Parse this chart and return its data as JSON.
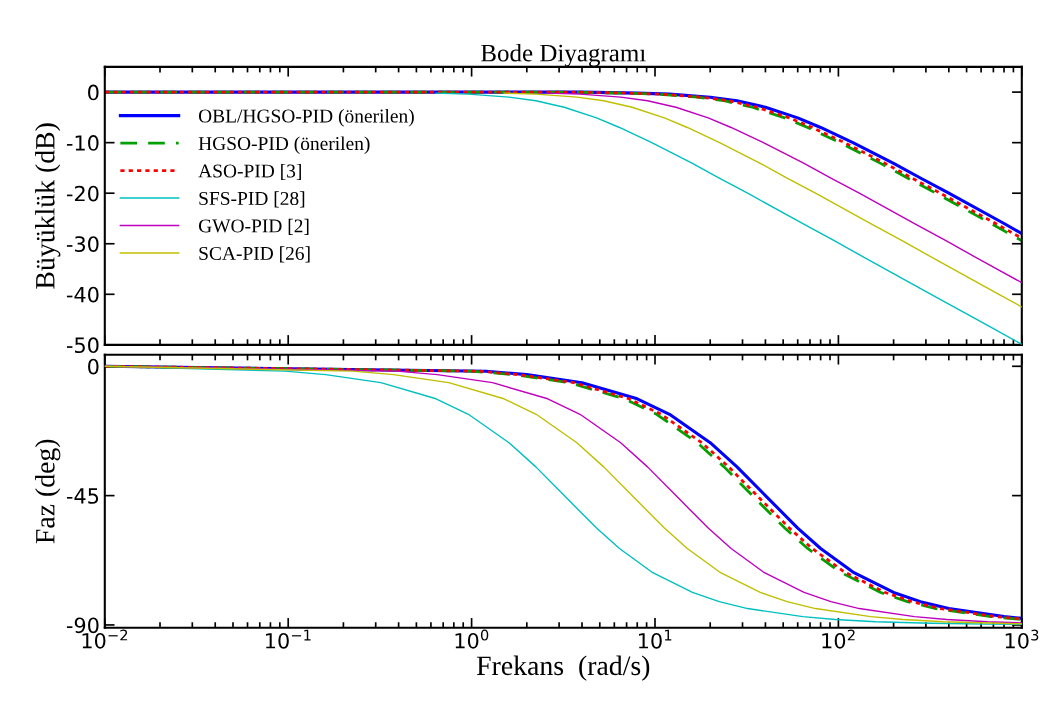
{
  "chart_data": [
    {
      "type": "line",
      "title": "Bode Diyagramı",
      "ylabel": "Büyüklük (dB)",
      "log": "x",
      "xlim": [
        0.01,
        1000
      ],
      "ylim": [
        -50,
        5
      ],
      "yticks": [
        -50,
        -40,
        -30,
        -20,
        -10,
        0
      ],
      "tick_labels": "y",
      "legend": "left",
      "series": [
        {
          "name": "OBL/HGSO-PID (önerilen)",
          "color": "#0000ff",
          "line_style": "solid",
          "x": [
            0.01,
            1.2,
            2,
            4,
            8,
            12,
            20,
            28,
            40,
            60,
            80,
            120,
            200,
            280,
            400,
            800,
            1000
          ],
          "values": [
            0,
            0,
            0,
            0,
            -0.2,
            -0.4,
            -1,
            -1.7,
            -3.0,
            -5.1,
            -7.0,
            -10.0,
            -14.1,
            -17.0,
            -20.0,
            -26.0,
            -28.0
          ]
        },
        {
          "name": "HGSO-PID (önerilen)",
          "color": "#00a000",
          "line_style": "dashed",
          "x": [
            0.01,
            1.0,
            1.7,
            3.4,
            6.8,
            10.2,
            17,
            23.8,
            34,
            51,
            68,
            102,
            170,
            238,
            340,
            680,
            1000
          ],
          "values": [
            0,
            0,
            0,
            0,
            -0.2,
            -0.4,
            -1,
            -1.7,
            -3.0,
            -5.1,
            -7.0,
            -10.0,
            -14.1,
            -17.0,
            -20.0,
            -26.0,
            -29.4
          ]
        },
        {
          "name": "ASO-PID [3]",
          "color": "#ff0000",
          "line_style": "dotted",
          "x": [
            0.01,
            1.1,
            1.8,
            3.6,
            7.2,
            10.8,
            18,
            25.2,
            36,
            54,
            72,
            108,
            180,
            252,
            360,
            720,
            1000
          ],
          "values": [
            0,
            0,
            0,
            0,
            -0.2,
            -0.4,
            -1,
            -1.7,
            -3.0,
            -5.1,
            -7.0,
            -10.0,
            -14.1,
            -17.0,
            -20.0,
            -26.0,
            -28.9
          ]
        },
        {
          "name": "SFS-PID [28]",
          "color": "#00bfbf",
          "line_style": "solid",
          "x": [
            0.64,
            0.96,
            1.6,
            2.24,
            3.2,
            4.8,
            6.4,
            9.6,
            16,
            22.4,
            32,
            64,
            96,
            160,
            320,
            640,
            1000
          ],
          "values": [
            -0.2,
            -0.4,
            -1,
            -1.7,
            -3.0,
            -5.1,
            -7.0,
            -10.0,
            -14.1,
            -17.0,
            -20.0,
            -26.0,
            -29.5,
            -34.0,
            -40.0,
            -46.0,
            -49.9
          ]
        },
        {
          "name": "GWO-PID [2]",
          "color": "#bf00bf",
          "line_style": "solid",
          "x": [
            2.6,
            3.9,
            6.5,
            9.1,
            13,
            19.5,
            26,
            39,
            65,
            91,
            130,
            260,
            390,
            650,
            1000
          ],
          "values": [
            -0.2,
            -0.4,
            -1,
            -1.7,
            -3.0,
            -5.1,
            -7.0,
            -10.0,
            -14.1,
            -17.0,
            -20.0,
            -26.0,
            -29.5,
            -34.0,
            -37.7
          ]
        },
        {
          "name": "SCA-PID [26]",
          "color": "#bfbf00",
          "line_style": "solid",
          "x": [
            1.5,
            2.25,
            3.75,
            5.25,
            7.5,
            11.25,
            15,
            22.5,
            37.5,
            52.5,
            75,
            150,
            225,
            375,
            750,
            1000
          ],
          "values": [
            -0.2,
            -0.4,
            -1,
            -1.7,
            -3.0,
            -5.1,
            -7.0,
            -10.0,
            -14.1,
            -17.0,
            -20.0,
            -26.0,
            -29.5,
            -34.0,
            -40.0,
            -42.5
          ]
        }
      ]
    },
    {
      "type": "line",
      "ylabel": "Faz (deg)",
      "xlabel": "Frekans  (rad/s)",
      "log": "x",
      "xlim": [
        0.01,
        1000
      ],
      "xticks": [
        {
          "value": 0.01,
          "label": "10$^{−2}$"
        },
        {
          "value": 0.1,
          "label": "10$^{−1}$"
        },
        {
          "value": 1,
          "label": "10$^{0}$"
        },
        {
          "value": 10,
          "label": "10$^{1}$"
        },
        {
          "value": 100,
          "label": "10$^{2}$"
        },
        {
          "value": 1000,
          "label": "10$^{3}$"
        }
      ],
      "ylim": [
        -91,
        4
      ],
      "yticks": [
        -90,
        -45,
        0
      ],
      "series": [
        {
          "color": "#0000ff",
          "line_style": "solid",
          "x": [
            0.01,
            1.2,
            2,
            4,
            8,
            12,
            20,
            28,
            40,
            60,
            80,
            120,
            200,
            280,
            400,
            800,
            1000
          ],
          "values": [
            0,
            -1.7,
            -2.9,
            -5.7,
            -11.3,
            -16.7,
            -26.6,
            -35,
            -45,
            -56.3,
            -63.4,
            -71.6,
            -78.7,
            -81.9,
            -84.3,
            -87.1,
            -87.7
          ]
        },
        {
          "color": "#00a000",
          "line_style": "dashed",
          "x": [
            0.01,
            1.0,
            1.7,
            3.4,
            6.8,
            10.2,
            17,
            23.8,
            34,
            51,
            68,
            102,
            170,
            238,
            340,
            680,
            1000
          ],
          "values": [
            0,
            -1.7,
            -2.9,
            -5.7,
            -11.3,
            -16.7,
            -26.6,
            -35,
            -45,
            -56.3,
            -63.4,
            -71.6,
            -78.7,
            -81.9,
            -84.3,
            -87.1,
            -88.1
          ]
        },
        {
          "color": "#ff0000",
          "line_style": "dotted",
          "x": [
            0.01,
            1.1,
            1.8,
            3.6,
            7.2,
            10.8,
            18,
            25.2,
            36,
            54,
            72,
            108,
            180,
            252,
            360,
            720,
            1000
          ],
          "values": [
            0,
            -1.7,
            -2.9,
            -5.7,
            -11.3,
            -16.7,
            -26.6,
            -35,
            -45,
            -56.3,
            -63.4,
            -71.6,
            -78.7,
            -81.9,
            -84.3,
            -87.1,
            -87.9
          ]
        },
        {
          "color": "#00bfbf",
          "line_style": "solid",
          "x": [
            0.01,
            0.096,
            0.16,
            0.32,
            0.64,
            0.96,
            1.6,
            2.24,
            3.2,
            4.8,
            6.4,
            9.6,
            16,
            22.4,
            32,
            64,
            96,
            160,
            320,
            640,
            1000
          ],
          "values": [
            0,
            -1.7,
            -2.9,
            -5.7,
            -11.3,
            -16.7,
            -26.6,
            -35,
            -45,
            -56.3,
            -63.4,
            -71.6,
            -78.7,
            -81.9,
            -84.3,
            -87.1,
            -88.1,
            -88.9,
            -89.4,
            -89.7,
            -89.8
          ]
        },
        {
          "color": "#bf00bf",
          "line_style": "solid",
          "x": [
            0.01,
            0.39,
            0.65,
            1.3,
            2.6,
            3.9,
            6.5,
            9.1,
            13,
            19.5,
            26,
            39,
            65,
            91,
            130,
            260,
            390,
            650,
            1000
          ],
          "values": [
            0,
            -1.7,
            -2.9,
            -5.7,
            -11.3,
            -16.7,
            -26.6,
            -35,
            -45,
            -56.3,
            -63.4,
            -71.6,
            -78.7,
            -81.9,
            -84.3,
            -87.1,
            -88.1,
            -88.9,
            -89.3
          ]
        },
        {
          "color": "#bfbf00",
          "line_style": "solid",
          "x": [
            0.01,
            0.225,
            0.375,
            0.75,
            1.5,
            2.25,
            3.75,
            5.25,
            7.5,
            11.25,
            15,
            22.5,
            37.5,
            52.5,
            75,
            150,
            225,
            375,
            750,
            1000
          ],
          "values": [
            0,
            -1.7,
            -2.9,
            -5.7,
            -11.3,
            -16.7,
            -26.6,
            -35,
            -45,
            -56.3,
            -63.4,
            -71.6,
            -78.7,
            -81.9,
            -84.3,
            -87.1,
            -88.1,
            -88.9,
            -89.4,
            -89.6
          ]
        }
      ]
    }
  ]
}
